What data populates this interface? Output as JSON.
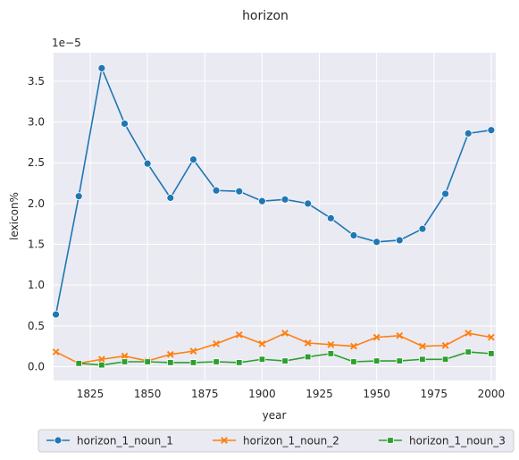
{
  "chart_data": {
    "type": "line",
    "title": "horizon",
    "xlabel": "year",
    "ylabel": "lexicon%",
    "y_offset_label": "1e−5",
    "xlim": [
      1809,
      2002
    ],
    "ylim": [
      -0.17,
      3.85
    ],
    "x_ticks": [
      1825,
      1850,
      1875,
      1900,
      1925,
      1950,
      1975,
      2000
    ],
    "y_ticks": [
      0.0,
      0.5,
      1.0,
      1.5,
      2.0,
      2.5,
      3.0,
      3.5
    ],
    "grid": true,
    "background": "#eaeaf2",
    "legend_position": "bottom-center",
    "x": [
      1810,
      1820,
      1830,
      1840,
      1850,
      1860,
      1870,
      1880,
      1890,
      1900,
      1910,
      1920,
      1930,
      1940,
      1950,
      1960,
      1970,
      1980,
      1990,
      2000
    ],
    "series": [
      {
        "name": "horizon_1_noun_1",
        "color": "#1f77b4",
        "marker": "circle",
        "values": [
          0.64,
          2.09,
          3.66,
          2.98,
          2.49,
          2.07,
          2.54,
          2.16,
          2.15,
          2.03,
          2.05,
          2.0,
          1.82,
          1.61,
          1.53,
          1.55,
          1.69,
          2.12,
          2.86,
          2.9
        ]
      },
      {
        "name": "horizon_1_noun_2",
        "color": "#ff7f0e",
        "marker": "x",
        "values": [
          0.18,
          0.04,
          0.09,
          0.13,
          0.07,
          0.15,
          0.19,
          0.28,
          0.39,
          0.28,
          0.41,
          0.29,
          0.27,
          0.25,
          0.36,
          0.38,
          0.25,
          0.26,
          0.41,
          0.36
        ]
      },
      {
        "name": "horizon_1_noun_3",
        "color": "#2ca02c",
        "marker": "square",
        "values": [
          null,
          0.04,
          0.02,
          0.06,
          0.06,
          0.05,
          0.05,
          0.06,
          0.05,
          0.09,
          0.07,
          0.12,
          0.16,
          0.06,
          0.07,
          0.07,
          0.09,
          0.09,
          0.18,
          0.16
        ]
      }
    ]
  }
}
